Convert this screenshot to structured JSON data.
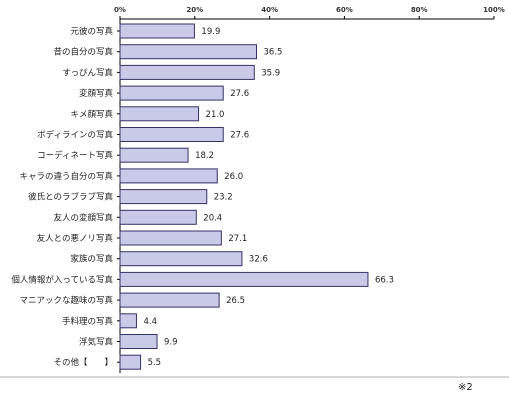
{
  "chart_data": {
    "type": "bar",
    "orientation": "horizontal",
    "categories": [
      "元彼の写真",
      "昔の自分の写真",
      "すっぴん写真",
      "変顔写真",
      "キメ顔写真",
      "ボディラインの写真",
      "コーディネート写真",
      "キャラの違う自分の写真",
      "彼氏とのラブラブ写真",
      "友人の変顔写真",
      "友人との悪ノリ写真",
      "家族の写真",
      "個人情報が入っている写真",
      "マニアックな趣味の写真",
      "手料理の写真",
      "浮気写真",
      "その他【　　】"
    ],
    "values": [
      19.9,
      36.5,
      35.9,
      27.6,
      21.0,
      27.6,
      18.2,
      26.0,
      23.2,
      20.4,
      27.1,
      32.6,
      66.3,
      26.5,
      4.4,
      9.9,
      5.5
    ],
    "value_labels": [
      "19.9",
      "36.5",
      "35.9",
      "27.6",
      "21.0",
      "27.6",
      "18.2",
      "26.0",
      "23.2",
      "20.4",
      "27.1",
      "32.6",
      "66.3",
      "26.5",
      "4.4",
      "9.9",
      "5.5"
    ],
    "xlim": [
      0,
      100
    ],
    "xticks": [
      0,
      20,
      40,
      60,
      80,
      100
    ],
    "xtick_labels": [
      "0%",
      "20%",
      "40%",
      "60%",
      "80%",
      "100%"
    ],
    "tick_position": "top",
    "grid": false,
    "bar_fill": "#c9c9e8",
    "bar_stroke": "#333366",
    "footnote": "※2"
  }
}
